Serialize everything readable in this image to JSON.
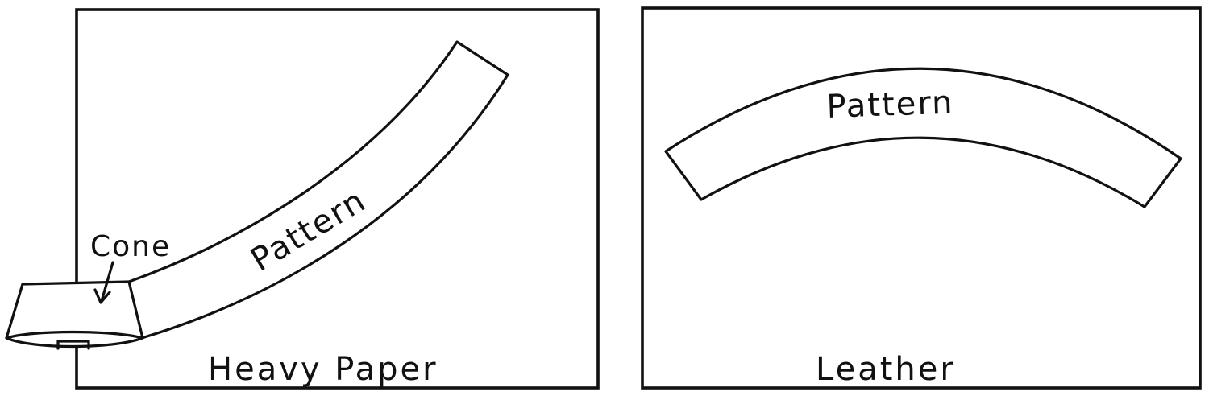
{
  "panels": [
    {
      "caption": "Heavy Paper",
      "pattern_label": "Pattern",
      "cone_label": "Cone"
    },
    {
      "caption": "Leather",
      "pattern_label": "Pattern"
    }
  ]
}
